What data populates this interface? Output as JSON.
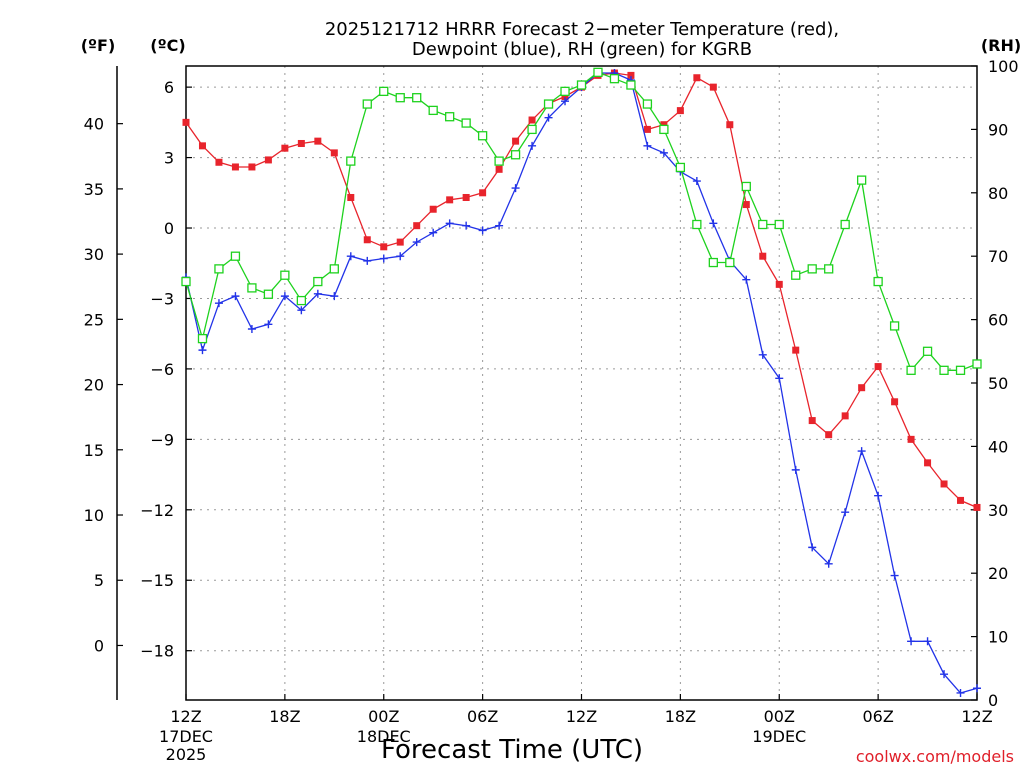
{
  "chart_data": {
    "type": "line",
    "title_lines": [
      "2025121712 HRRR Forecast 2−meter Temperature (red),",
      "Dewpoint (blue), RH (green) for KGRB"
    ],
    "xlabel": "Forecast Time (UTC)",
    "credit": "coolwx.com/models",
    "units": {
      "fahrenheit": "(ºF)",
      "celsius": "(ºC)",
      "rh": "(RH)"
    },
    "x_range": [
      0,
      48
    ],
    "x_ticks": [
      {
        "hour": 0,
        "label": "12Z",
        "sub": [
          "17DEC",
          "2025"
        ]
      },
      {
        "hour": 6,
        "label": "18Z",
        "sub": []
      },
      {
        "hour": 12,
        "label": "00Z",
        "sub": [
          "18DEC"
        ]
      },
      {
        "hour": 18,
        "label": "06Z",
        "sub": []
      },
      {
        "hour": 24,
        "label": "12Z",
        "sub": []
      },
      {
        "hour": 30,
        "label": "18Z",
        "sub": []
      },
      {
        "hour": 36,
        "label": "00Z",
        "sub": [
          "19DEC"
        ]
      },
      {
        "hour": 42,
        "label": "06Z",
        "sub": []
      },
      {
        "hour": 48,
        "label": "12Z",
        "sub": []
      }
    ],
    "celsius_axis": {
      "range": [
        -20.1,
        6.9
      ],
      "ticks": [
        6,
        3,
        0,
        -3,
        -6,
        -9,
        -12,
        -15,
        -18
      ],
      "tick_labels": [
        "6",
        "3",
        "0",
        "−3",
        "−6",
        "−9",
        "−12",
        "−15",
        "−18"
      ]
    },
    "fahrenheit_axis": {
      "ticks": [
        40,
        35,
        30,
        25,
        20,
        15,
        10,
        5,
        0
      ],
      "tick_labels": [
        "40",
        "35",
        "30",
        "25",
        "20",
        "15",
        "10",
        "5",
        "0"
      ]
    },
    "rh_axis": {
      "range": [
        0,
        100
      ],
      "ticks": [
        100,
        90,
        80,
        70,
        60,
        50,
        40,
        30,
        20,
        10,
        0
      ],
      "tick_labels": [
        "100",
        "90",
        "80",
        "70",
        "60",
        "50",
        "40",
        "30",
        "20",
        "10",
        "0"
      ]
    },
    "series": [
      {
        "name": "Temperature",
        "units": "C",
        "color": "#e8242c",
        "marker": "filled-square",
        "values": [
          4.5,
          3.5,
          2.8,
          2.6,
          2.6,
          2.9,
          3.4,
          3.6,
          3.7,
          3.2,
          1.3,
          -0.5,
          -0.8,
          -0.6,
          0.1,
          0.8,
          1.2,
          1.3,
          1.5,
          2.5,
          3.7,
          4.6,
          5.3,
          5.6,
          6.0,
          6.5,
          6.6,
          6.5,
          4.2,
          4.4,
          5.0,
          6.4,
          6.0,
          4.4,
          1.0,
          -1.2,
          -2.4,
          -5.2,
          -8.2,
          -8.8,
          -8.0,
          -6.8,
          -5.9,
          -7.4,
          -9.0,
          -10.0,
          -10.9,
          -11.6,
          -11.9
        ]
      },
      {
        "name": "Dewpoint",
        "units": "C",
        "color": "#2233e8",
        "marker": "plus",
        "values": [
          -2.1,
          -5.2,
          -3.2,
          -2.9,
          -4.3,
          -4.1,
          -2.9,
          -3.5,
          -2.8,
          -2.9,
          -1.2,
          -1.4,
          -1.3,
          -1.2,
          -0.6,
          -0.2,
          0.2,
          0.1,
          -0.1,
          0.1,
          1.7,
          3.5,
          4.7,
          5.4,
          6.0,
          6.6,
          6.6,
          6.3,
          3.5,
          3.2,
          2.4,
          2.0,
          0.2,
          -1.4,
          -2.2,
          -5.4,
          -6.4,
          -10.3,
          -13.6,
          -14.3,
          -12.1,
          -9.5,
          -11.4,
          -14.8,
          -17.6,
          -17.6,
          -19.0,
          -19.8,
          -19.6
        ]
      },
      {
        "name": "RH",
        "units": "%",
        "color": "#1ed21e",
        "marker": "open-square",
        "values": [
          66,
          57,
          68,
          70,
          65,
          64,
          67,
          63,
          66,
          68,
          85,
          94,
          96,
          95,
          95,
          93,
          92,
          91,
          89,
          85,
          86,
          90,
          94,
          96,
          97,
          99,
          98,
          97,
          94,
          90,
          84,
          75,
          69,
          69,
          81,
          75,
          75,
          67,
          68,
          68,
          75,
          82,
          66,
          59,
          52,
          55,
          52,
          52,
          53
        ]
      }
    ]
  }
}
